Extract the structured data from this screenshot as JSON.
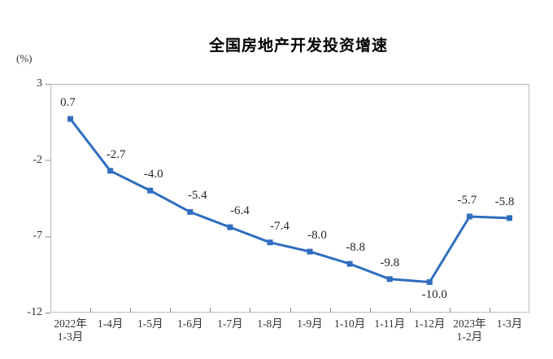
{
  "page": {
    "background": "#ffffff"
  },
  "chart": {
    "title": "全国房地产开发投资增速",
    "unit_label": "(%)",
    "colors": {
      "line": "#2f6ebf",
      "marker": "#2f6ebf",
      "plot_border": "#bdbdbd",
      "tick": "#8c8c8c",
      "axis_text": "#333333",
      "data_label_text": "#262626",
      "title_text": "#000000"
    }
  },
  "chart_data": {
    "type": "line",
    "title": "全国房地产开发投资增速",
    "ylabel": "(%)",
    "xlabel": "",
    "categories": [
      "2022年\n1-3月",
      "1-4月",
      "1-5月",
      "1-6月",
      "1-7月",
      "1-8月",
      "1-9月",
      "1-10月",
      "1-11月",
      "1-12月",
      "2023年\n1-2月",
      "1-3月"
    ],
    "values": [
      0.7,
      -2.7,
      -4.0,
      -5.4,
      -6.4,
      -7.4,
      -8.0,
      -8.8,
      -9.8,
      -10.0,
      -5.7,
      -5.8
    ],
    "data_labels": [
      "0.7",
      "-2.7",
      "-4.0",
      "-5.4",
      "-6.4",
      "-7.4",
      "-8.0",
      "-8.8",
      "-9.8",
      "-10.0",
      "-5.7",
      "-5.8"
    ],
    "label_below_indices": [
      9
    ],
    "ylim": [
      -12,
      3
    ],
    "yticks": [
      3,
      -2,
      -7,
      -12
    ],
    "grid": false,
    "legend": false,
    "marker": "square"
  }
}
